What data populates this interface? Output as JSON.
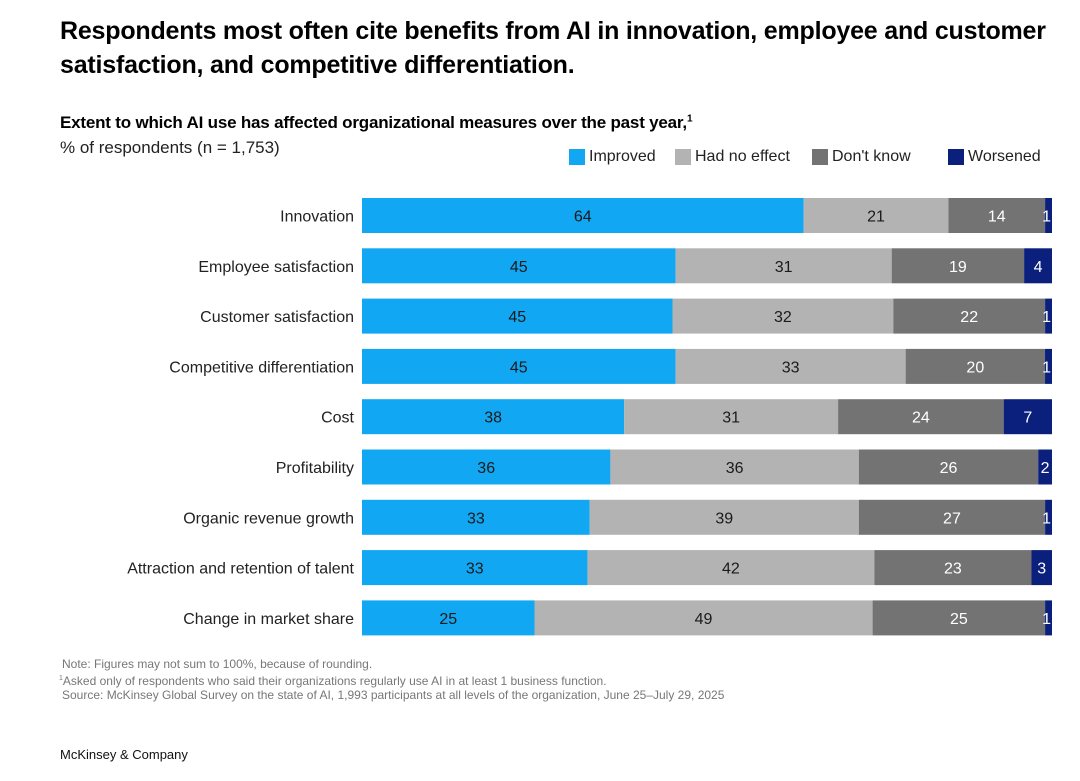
{
  "header": {
    "title": "Respondents most often cite benefits from AI in innovation, employee and customer satisfaction, and competitive differentiation.",
    "subtitle": "Extent to which AI use has affected organizational measures over the past year,",
    "subtitle_footnote_marker": "1",
    "unit": "% of respondents (n = 1,753)"
  },
  "legend": {
    "items": [
      {
        "label": "Improved",
        "color": "#12a7f2"
      },
      {
        "label": "Had no effect",
        "color": "#b3b3b3"
      },
      {
        "label": "Don't know",
        "color": "#737373"
      },
      {
        "label": "Worsened",
        "color": "#0b1f7d"
      }
    ]
  },
  "chart_data": {
    "type": "bar",
    "orientation": "horizontal",
    "stacked": true,
    "title": "Extent to which AI use has affected organizational measures over the past year",
    "xlabel": "% of respondents (n = 1,753)",
    "ylabel": "",
    "xlim": [
      0,
      100
    ],
    "grid": false,
    "legend_position": "top-right",
    "categories": [
      "Innovation",
      "Employee satisfaction",
      "Customer satisfaction",
      "Competitive differentiation",
      "Cost",
      "Profitability",
      "Organic revenue growth",
      "Attraction and retention of talent",
      "Change in market share"
    ],
    "series": [
      {
        "name": "Improved",
        "color": "#12a7f2",
        "label_color": "#1a1a1a",
        "values": [
          64,
          45,
          45,
          45,
          38,
          36,
          33,
          33,
          25
        ]
      },
      {
        "name": "Had no effect",
        "color": "#b3b3b3",
        "label_color": "#1a1a1a",
        "values": [
          21,
          31,
          32,
          33,
          31,
          36,
          39,
          42,
          49
        ]
      },
      {
        "name": "Don't know",
        "color": "#737373",
        "label_color": "#ffffff",
        "values": [
          14,
          19,
          22,
          20,
          24,
          26,
          27,
          23,
          25
        ]
      },
      {
        "name": "Worsened",
        "color": "#0b1f7d",
        "label_color": "#ffffff",
        "values": [
          1,
          4,
          1,
          1,
          7,
          2,
          1,
          3,
          1
        ]
      }
    ]
  },
  "notes": {
    "note": "Note: Figures may not sum to 100%, because of rounding.",
    "footnote_marker": "1",
    "footnote": "Asked only of respondents who said their organizations regularly use AI in at least 1 business function.",
    "source": "Source: McKinsey Global Survey on the state of AI, 1,993 participants at all levels of the organization, June 25–July 29, 2025"
  },
  "brand": "McKinsey & Company"
}
